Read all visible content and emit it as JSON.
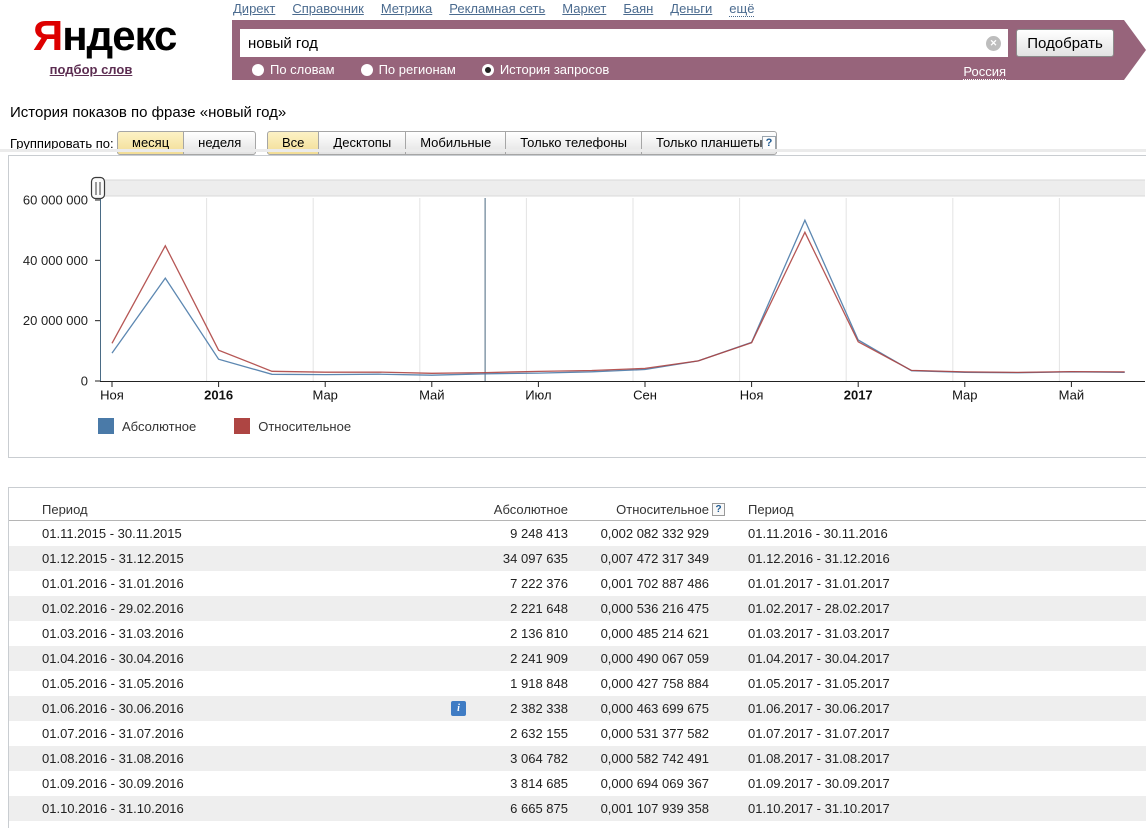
{
  "header": {
    "logo": {
      "first_letter": "Я",
      "rest": "ндекс"
    },
    "logo_sub_link": "подбор слов",
    "nav": [
      "Директ",
      "Справочник",
      "Метрика",
      "Рекламная сеть",
      "Маркет",
      "Баян",
      "Деньги",
      "ещё"
    ],
    "search": {
      "value": "новый год",
      "submit_label": "Подобрать",
      "modes": [
        {
          "label": "По словам",
          "selected": false
        },
        {
          "label": "По регионам",
          "selected": false
        },
        {
          "label": "История запросов",
          "selected": true
        }
      ],
      "region_link": "Россия"
    }
  },
  "icons": {
    "clear": "✕",
    "info": "i",
    "help": "?",
    "slider_handle": "||"
  },
  "main": {
    "title": "История показов по фразе «новый год»",
    "group_by": {
      "label": "Группировать по:",
      "options": [
        {
          "label": "месяц",
          "selected": true
        },
        {
          "label": "неделя",
          "selected": false
        }
      ]
    },
    "device_tabs": [
      {
        "label": "Все",
        "selected": true
      },
      {
        "label": "Десктопы",
        "selected": false
      },
      {
        "label": "Мобильные",
        "selected": false
      },
      {
        "label": "Только телефоны",
        "selected": false
      },
      {
        "label": "Только планшеты",
        "selected": false
      }
    ],
    "help_icon": "?"
  },
  "chart_data": {
    "type": "line",
    "title": "История показов по фразе «новый год»",
    "x_tick_labels": [
      "Ноя",
      "2016",
      "Мар",
      "Май",
      "Июл",
      "Сен",
      "Ноя",
      "2017",
      "Мар",
      "Май"
    ],
    "bold_tick_labels": [
      "2016",
      "2017"
    ],
    "y_tick_labels": [
      "60 000 000",
      "40 000 000",
      "20 000 000",
      "0"
    ],
    "y_tick_values": [
      60000000,
      40000000,
      20000000,
      0
    ],
    "ylim": [
      0,
      60000000
    ],
    "months": [
      "Ноя 2015",
      "Дек 2015",
      "Янв 2016",
      "Фев 2016",
      "Мар 2016",
      "Апр 2016",
      "Май 2016",
      "Июн 2016",
      "Июл 2016",
      "Авг 2016",
      "Сен 2016",
      "Окт 2016",
      "Ноя 2016",
      "Дек 2016",
      "Янв 2017",
      "Фев 2017",
      "Мар 2017",
      "Апр 2017",
      "Май 2017",
      "Июн 2017"
    ],
    "series": [
      {
        "name": "Абсолютное",
        "color": "#4a7aa8",
        "values": [
          9248413,
          34097635,
          7222376,
          2221648,
          2136810,
          2241909,
          1918848,
          2382338,
          2632155,
          3064782,
          3814685,
          6665875,
          12800000,
          53300000,
          13600000,
          3400000,
          2900000,
          2750000,
          3000000,
          2900000
        ]
      },
      {
        "name": "Относительное",
        "color": "#ae4543",
        "values": [
          12494000,
          44834000,
          10217000,
          3217000,
          2911000,
          2940000,
          2567000,
          2782000,
          3189000,
          3496000,
          4164000,
          6648000,
          12700000,
          49300000,
          13000000,
          3500000,
          3000000,
          2850000,
          3100000,
          3000000
        ]
      }
    ],
    "marker_month_index": 7,
    "legend_position": "bottom-left",
    "grid": true
  },
  "legend": [
    {
      "label": "Абсолютное",
      "color": "#4a7aa8"
    },
    {
      "label": "Относительное",
      "color": "#ae4543"
    }
  ],
  "table": {
    "headers": {
      "period_left": "Период",
      "absolute": "Абсолютное",
      "relative": "Относительное",
      "period_right": "Период",
      "relative_help": "?"
    },
    "rows": [
      {
        "period": "01.11.2015 - 30.11.2015",
        "absolute": "9 248 413",
        "relative": "0,002 082 332 929",
        "period2": "01.11.2016 - 30.11.2016",
        "info": false
      },
      {
        "period": "01.12.2015 - 31.12.2015",
        "absolute": "34 097 635",
        "relative": "0,007 472 317 349",
        "period2": "01.12.2016 - 31.12.2016",
        "info": false
      },
      {
        "period": "01.01.2016 - 31.01.2016",
        "absolute": "7 222 376",
        "relative": "0,001 702 887 486",
        "period2": "01.01.2017 - 31.01.2017",
        "info": false
      },
      {
        "period": "01.02.2016 - 29.02.2016",
        "absolute": "2 221 648",
        "relative": "0,000 536 216 475",
        "period2": "01.02.2017 - 28.02.2017",
        "info": false
      },
      {
        "period": "01.03.2016 - 31.03.2016",
        "absolute": "2 136 810",
        "relative": "0,000 485 214 621",
        "period2": "01.03.2017 - 31.03.2017",
        "info": false
      },
      {
        "period": "01.04.2016 - 30.04.2016",
        "absolute": "2 241 909",
        "relative": "0,000 490 067 059",
        "period2": "01.04.2017 - 30.04.2017",
        "info": false
      },
      {
        "period": "01.05.2016 - 31.05.2016",
        "absolute": "1 918 848",
        "relative": "0,000 427 758 884",
        "period2": "01.05.2017 - 31.05.2017",
        "info": false
      },
      {
        "period": "01.06.2016 - 30.06.2016",
        "absolute": "2 382 338",
        "relative": "0,000 463 699 675",
        "period2": "01.06.2017 - 30.06.2017",
        "info": true
      },
      {
        "period": "01.07.2016 - 31.07.2016",
        "absolute": "2 632 155",
        "relative": "0,000 531 377 582",
        "period2": "01.07.2017 - 31.07.2017",
        "info": false
      },
      {
        "period": "01.08.2016 - 31.08.2016",
        "absolute": "3 064 782",
        "relative": "0,000 582 742 491",
        "period2": "01.08.2017 - 31.08.2017",
        "info": false
      },
      {
        "period": "01.09.2016 - 30.09.2016",
        "absolute": "3 814 685",
        "relative": "0,000 694 069 367",
        "period2": "01.09.2017 - 30.09.2017",
        "info": false
      },
      {
        "period": "01.10.2016 - 31.10.2016",
        "absolute": "6 665 875",
        "relative": "0,001 107 939 358",
        "period2": "01.10.2017 - 31.10.2017",
        "info": false
      }
    ]
  },
  "colors": {
    "search_panel_bg": "#97647b",
    "nav_link": "#4b6b8f",
    "logo_red": "#dd0000",
    "logo_sub": "#5c2d51",
    "selected_button_bg": "#f2dd96",
    "row_shade": "#eeeeee",
    "series_absolute": "#4a7aa8",
    "series_relative": "#ae4543",
    "info_icon_bg": "#3f7cc4"
  }
}
